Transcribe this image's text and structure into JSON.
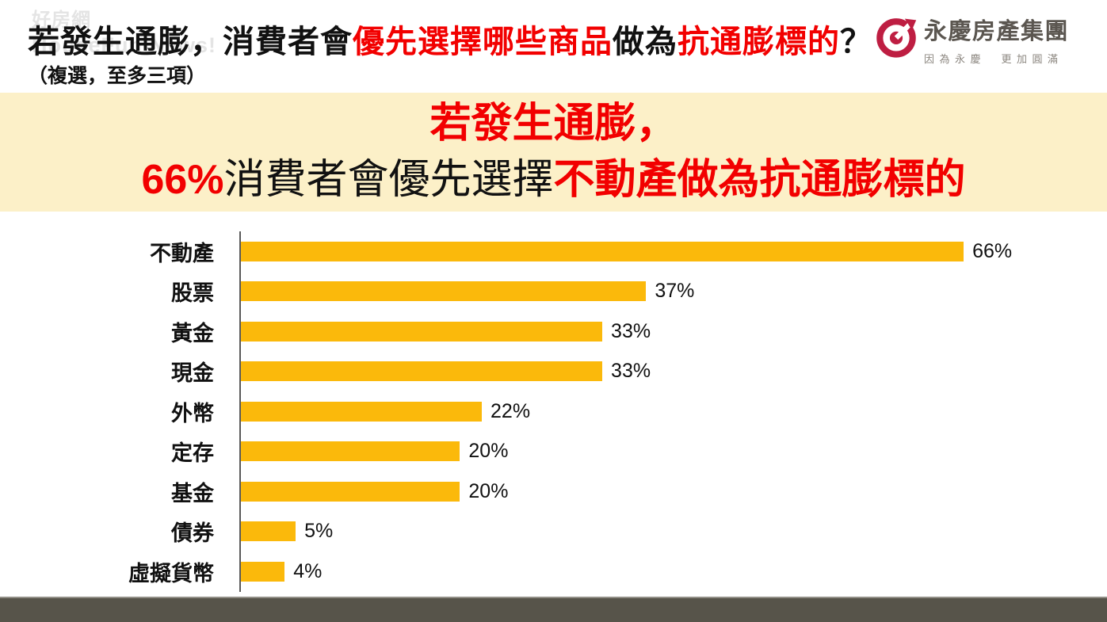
{
  "colors": {
    "accent_red": "#F20000",
    "bar_color": "#FBB90B",
    "banner_bg": "#FCF0C8",
    "footer_bg": "#57544A",
    "axis_gray": "#595959",
    "logo_crimson": "#BE1E42",
    "logo_text": "#5B5650",
    "logo_slogan": "#8C8780"
  },
  "header": {
    "watermark_line1": "好房網",
    "watermark_line2": "HouseFun News!",
    "title_segments": [
      {
        "text": "若發生通膨，消費者會",
        "style": "black"
      },
      {
        "text": "優先選擇哪些商品",
        "style": "red"
      },
      {
        "text": "做為",
        "style": "black"
      },
      {
        "text": "抗通膨標的",
        "style": "red"
      },
      {
        "text": "？",
        "style": "black"
      }
    ],
    "subtitle": "（複選，至多三項）",
    "logo": {
      "name": "永慶房產集團",
      "slogan": "因為永慶　更加圓滿"
    }
  },
  "banner": {
    "line1_segments": [
      {
        "text": "若發生通膨，",
        "style": "red"
      }
    ],
    "line2_segments": [
      {
        "text": "66%",
        "style": "red"
      },
      {
        "text": "消費者會優先選擇",
        "style": "black"
      },
      {
        "text": "不動產做為抗通膨標的",
        "style": "red"
      }
    ]
  },
  "chart_data": {
    "type": "bar",
    "orientation": "horizontal",
    "title": "若發生通膨，消費者會優先選擇哪些商品做為抗通膨標的？",
    "subtitle": "（複選，至多三項）",
    "categories": [
      "不動產",
      "股票",
      "黃金",
      "現金",
      "外幣",
      "定存",
      "基金",
      "債券",
      "虛擬貨幣"
    ],
    "values": [
      66,
      37,
      33,
      33,
      22,
      20,
      20,
      5,
      4
    ],
    "value_labels": [
      "66%",
      "37%",
      "33%",
      "33%",
      "22%",
      "20%",
      "20%",
      "5%",
      "4%"
    ],
    "unit": "%",
    "xlim": [
      0,
      70
    ],
    "grid": false,
    "legend": false,
    "bar_color": "#FBB90B",
    "xlabel": "",
    "ylabel": ""
  }
}
